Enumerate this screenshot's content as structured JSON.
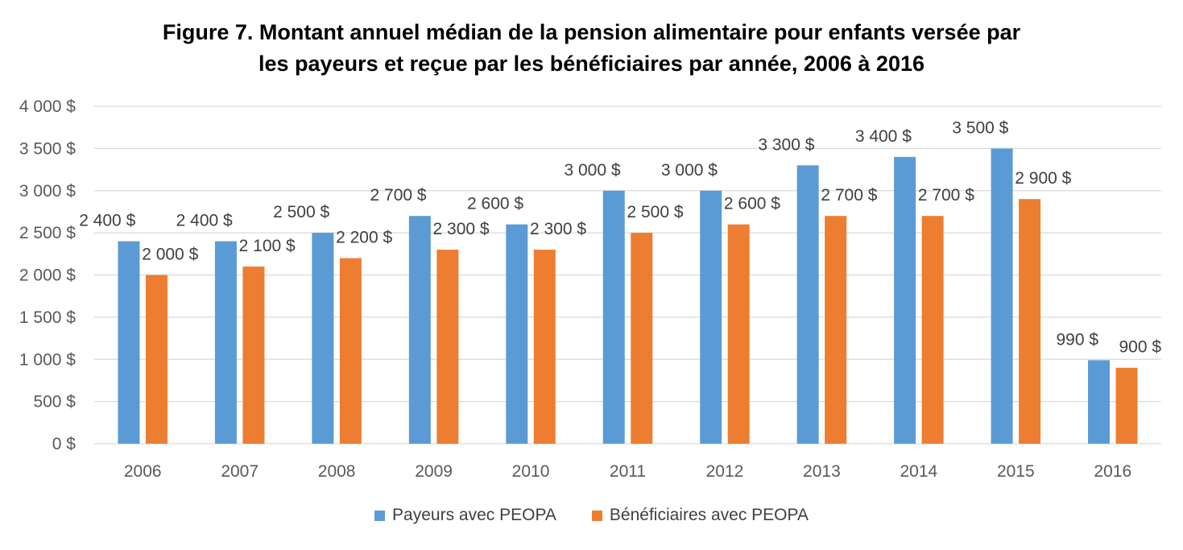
{
  "chart_data": {
    "type": "bar",
    "title_lines": [
      "Figure 7. Montant annuel médian de la pension alimentaire pour enfants versée par",
      "les payeurs et reçue par les bénéficiaires par année, 2006 à 2016"
    ],
    "xlabel": "",
    "ylabel": "",
    "categories": [
      "2006",
      "2007",
      "2008",
      "2009",
      "2010",
      "2011",
      "2012",
      "2013",
      "2014",
      "2015",
      "2016"
    ],
    "ylim": [
      0,
      4000
    ],
    "yticks": [
      0,
      500,
      1000,
      1500,
      2000,
      2500,
      3000,
      3500,
      4000
    ],
    "ytick_labels": [
      "0 $",
      "500 $",
      "1 000 $",
      "1 500 $",
      "2 000 $",
      "2 500 $",
      "3 000 $",
      "3 500 $",
      "4 000 $"
    ],
    "grid": true,
    "legend_position": "bottom",
    "series": [
      {
        "name": "Payeurs avec PEOPA",
        "color": "#5B9BD5",
        "values": [
          2400,
          2400,
          2500,
          2700,
          2600,
          3000,
          3000,
          3300,
          3400,
          3500,
          990
        ],
        "labels": [
          "2 400 $",
          "2 400 $",
          "2 500 $",
          "2 700 $",
          "2 600 $",
          "3 000 $",
          "3 000 $",
          "3 300 $",
          "3 400 $",
          "3 500 $",
          "990 $"
        ]
      },
      {
        "name": "Bénéficiaires avec PEOPA",
        "color": "#ED7D31",
        "values": [
          2000,
          2100,
          2200,
          2300,
          2300,
          2500,
          2600,
          2700,
          2700,
          2900,
          900
        ],
        "labels": [
          "2 000 $",
          "2 100 $",
          "2 200 $",
          "2 300 $",
          "2 300 $",
          "2 500 $",
          "2 600 $",
          "2 700 $",
          "2 700 $",
          "2 900 $",
          "900 $"
        ]
      }
    ]
  }
}
